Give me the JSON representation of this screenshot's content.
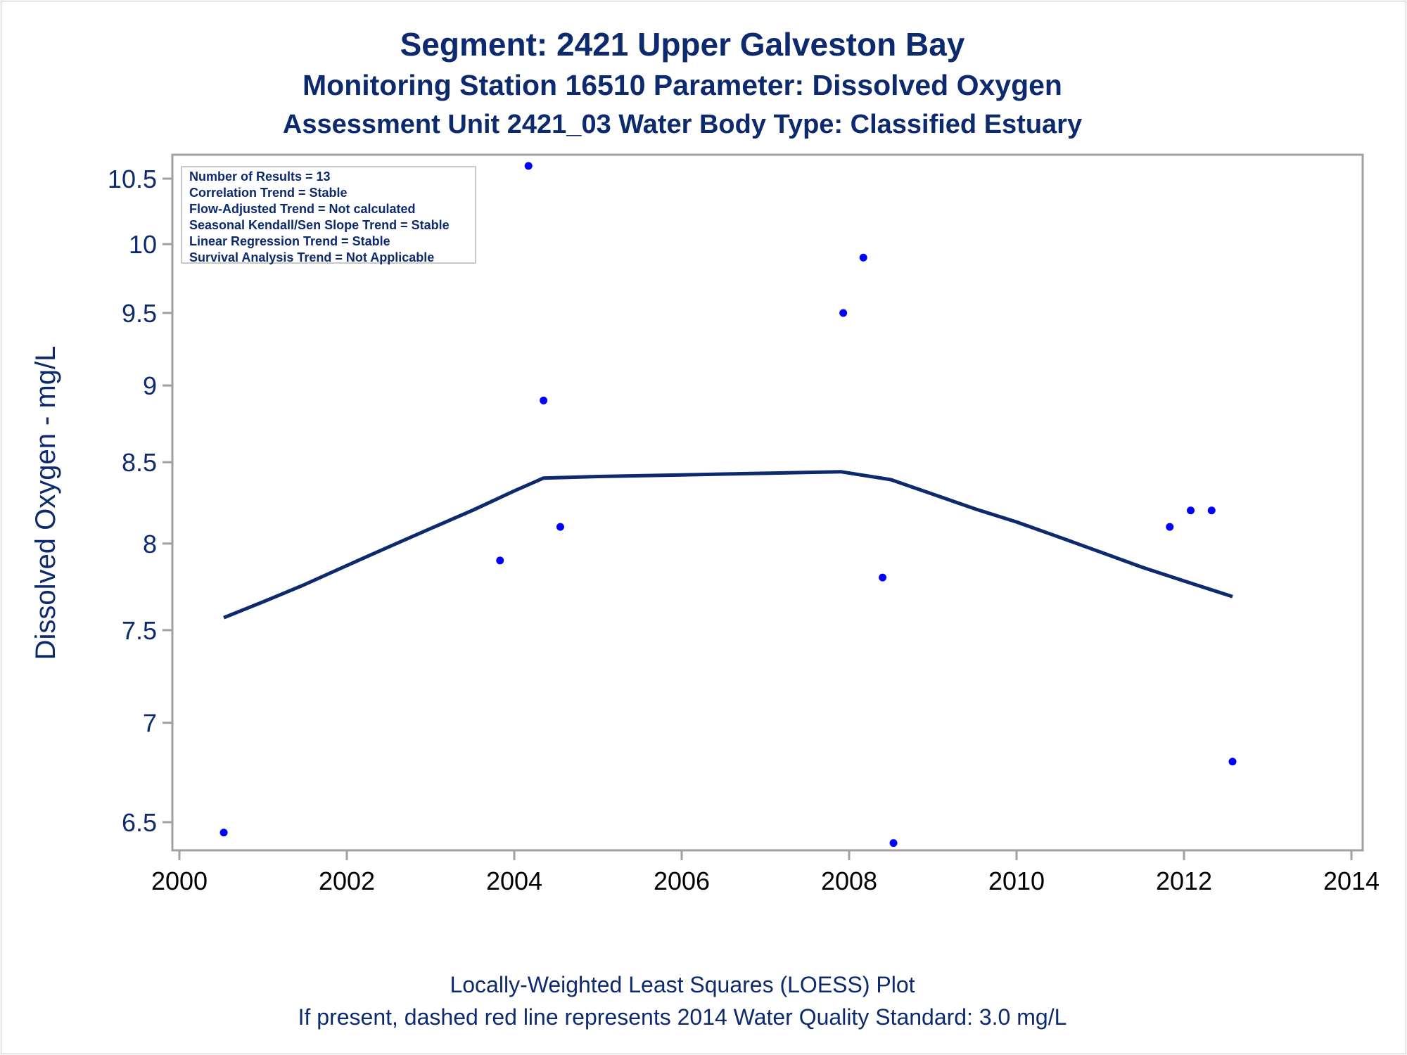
{
  "titles": {
    "line1": "Segment: 2421  Upper Galveston Bay",
    "line2": "Monitoring Station 16510 Parameter: Dissolved Oxygen",
    "line3": "Assessment Unit 2421_03   Water Body Type: Classified Estuary"
  },
  "footnotes": {
    "line1": "Locally-Weighted Least Squares (LOESS) Plot",
    "line2": "If present, dashed red line represents 2014 Water Quality Standard: 3.0 mg/L"
  },
  "legend": {
    "lines": [
      "Number of Results = 13",
      "Correlation Trend = Stable",
      "Flow-Adjusted Trend = Not calculated",
      "Seasonal Kendall/Sen Slope Trend = Stable",
      "Linear Regression Trend = Stable",
      "Survival Analysis Trend = Not Applicable"
    ]
  },
  "colors": {
    "points": "#0000ff",
    "loess": "#0d2a6e",
    "text": "#0d2a6e",
    "frame": "#a0a0a0"
  },
  "chart_data": {
    "type": "scatter",
    "ylabel": "Dissolved Oxygen - mg/L",
    "xlabel": "",
    "y_scale": "log",
    "xlim": [
      2000,
      2014
    ],
    "ylim": [
      6.4,
      10.65
    ],
    "x_ticks": [
      2000,
      2002,
      2004,
      2006,
      2008,
      2010,
      2012,
      2014
    ],
    "y_ticks": [
      6.5,
      7,
      7.5,
      8,
      8.5,
      9,
      9.5,
      10,
      10.5
    ],
    "y_tick_labels": [
      "6.5",
      "7",
      "7.5",
      "8",
      "8.5",
      "9",
      "9.5",
      "10",
      "10.5"
    ],
    "x_tick_labels": [
      "2000",
      "2002",
      "2004",
      "2006",
      "2008",
      "2010",
      "2012",
      "2014"
    ],
    "grid": false,
    "legend_position": "top-left",
    "series": [
      {
        "type": "scatter",
        "points": [
          {
            "x": 2000.53,
            "y": 6.45
          },
          {
            "x": 2003.83,
            "y": 7.9
          },
          {
            "x": 2004.17,
            "y": 10.6
          },
          {
            "x": 2004.35,
            "y": 8.9
          },
          {
            "x": 2004.55,
            "y": 8.1
          },
          {
            "x": 2007.93,
            "y": 9.5
          },
          {
            "x": 2008.17,
            "y": 9.9
          },
          {
            "x": 2008.4,
            "y": 7.8
          },
          {
            "x": 2008.53,
            "y": 6.4
          },
          {
            "x": 2011.83,
            "y": 8.1
          },
          {
            "x": 2012.08,
            "y": 8.2
          },
          {
            "x": 2012.33,
            "y": 8.2
          },
          {
            "x": 2012.58,
            "y": 6.8
          }
        ]
      },
      {
        "type": "line",
        "points": [
          {
            "x": 2000.53,
            "y": 7.57
          },
          {
            "x": 2001.0,
            "y": 7.66
          },
          {
            "x": 2001.5,
            "y": 7.76
          },
          {
            "x": 2002.0,
            "y": 7.87
          },
          {
            "x": 2002.5,
            "y": 7.98
          },
          {
            "x": 2003.0,
            "y": 8.09
          },
          {
            "x": 2003.5,
            "y": 8.2
          },
          {
            "x": 2004.0,
            "y": 8.32
          },
          {
            "x": 2004.35,
            "y": 8.4
          },
          {
            "x": 2005.0,
            "y": 8.41
          },
          {
            "x": 2006.0,
            "y": 8.42
          },
          {
            "x": 2007.0,
            "y": 8.43
          },
          {
            "x": 2007.9,
            "y": 8.44
          },
          {
            "x": 2008.5,
            "y": 8.39
          },
          {
            "x": 2009.0,
            "y": 8.3
          },
          {
            "x": 2009.5,
            "y": 8.21
          },
          {
            "x": 2010.0,
            "y": 8.13
          },
          {
            "x": 2010.5,
            "y": 8.04
          },
          {
            "x": 2011.0,
            "y": 7.95
          },
          {
            "x": 2011.5,
            "y": 7.86
          },
          {
            "x": 2012.0,
            "y": 7.78
          },
          {
            "x": 2012.58,
            "y": 7.69
          }
        ]
      }
    ]
  }
}
